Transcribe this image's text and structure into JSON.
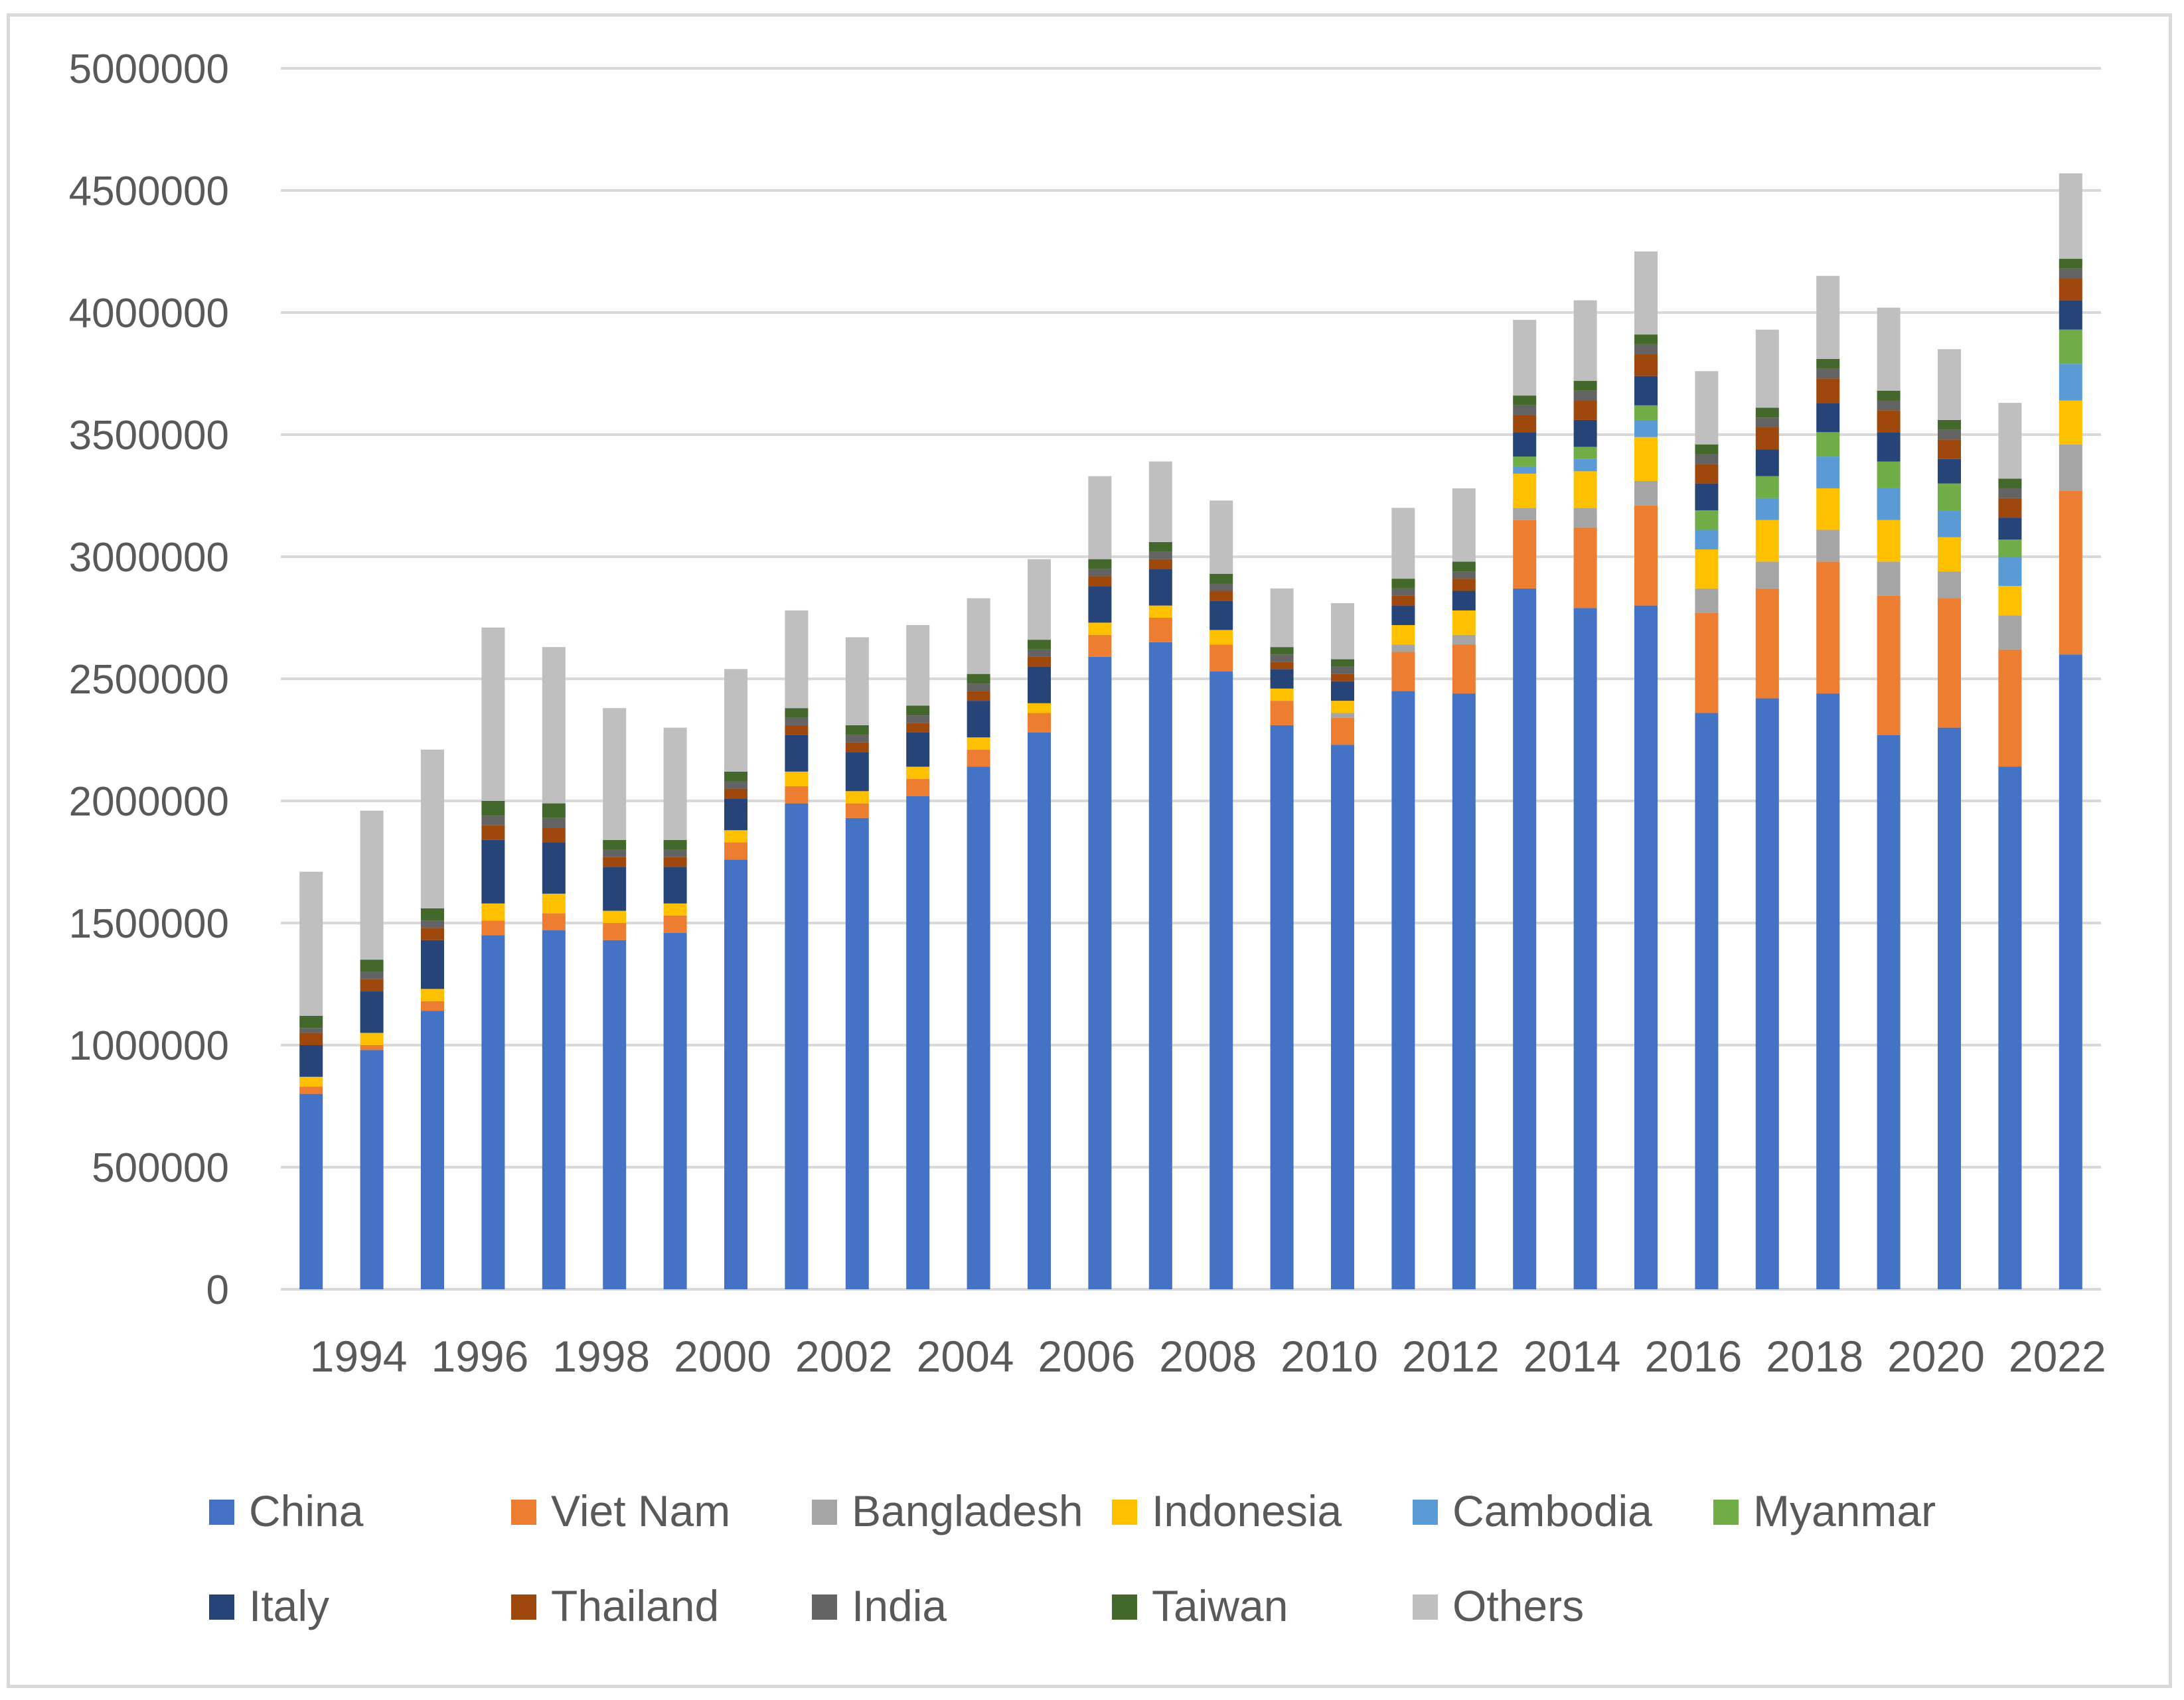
{
  "chart_data": {
    "type": "bar",
    "stacked": true,
    "title": "",
    "xlabel": "",
    "ylabel": "",
    "ylim": [
      0,
      5000000
    ],
    "yticks": [
      0,
      500000,
      1000000,
      1500000,
      2000000,
      2500000,
      3000000,
      3500000,
      4000000,
      4500000,
      5000000
    ],
    "ytick_labels": [
      "0",
      "500000",
      "1000000",
      "1500000",
      "2000000",
      "2500000",
      "3000000",
      "3500000",
      "4000000",
      "4500000",
      "5000000"
    ],
    "grid": true,
    "legend_position": "bottom",
    "categories": [
      "1993",
      "1994",
      "1995",
      "1996",
      "1997",
      "1998",
      "1999",
      "2000",
      "2001",
      "2002",
      "2003",
      "2004",
      "2005",
      "2006",
      "2007",
      "2008",
      "2009",
      "2010",
      "2011",
      "2012",
      "2013",
      "2014",
      "2015",
      "2016",
      "2017",
      "2018",
      "2019",
      "2020",
      "2021",
      "2022"
    ],
    "x_tick_labels": [
      "1994",
      "1996",
      "1998",
      "2000",
      "2002",
      "2004",
      "2006",
      "2008",
      "2010",
      "2012",
      "2014",
      "2016",
      "2018",
      "2020",
      "2022"
    ],
    "series": [
      {
        "name": "China",
        "color": "#4472C4",
        "values": [
          800000,
          980000,
          1140000,
          1450000,
          1470000,
          1430000,
          1460000,
          1760000,
          1990000,
          1930000,
          2020000,
          2140000,
          2280000,
          2590000,
          2650000,
          2530000,
          2310000,
          2230000,
          2450000,
          2440000,
          2870000,
          2790000,
          2800000,
          2360000,
          2420000,
          2440000,
          2270000,
          2300000,
          2140000,
          2600000
        ]
      },
      {
        "name": "Viet Nam",
        "color": "#ED7D31",
        "values": [
          30000,
          20000,
          40000,
          60000,
          70000,
          70000,
          70000,
          70000,
          70000,
          60000,
          70000,
          70000,
          80000,
          90000,
          100000,
          110000,
          100000,
          110000,
          160000,
          200000,
          280000,
          330000,
          410000,
          410000,
          450000,
          540000,
          570000,
          530000,
          480000,
          670000
        ]
      },
      {
        "name": "Bangladesh",
        "color": "#A5A5A5",
        "values": [
          0,
          0,
          0,
          0,
          0,
          0,
          0,
          0,
          0,
          0,
          0,
          0,
          0,
          0,
          0,
          0,
          0,
          20000,
          30000,
          40000,
          50000,
          80000,
          100000,
          100000,
          110000,
          130000,
          140000,
          110000,
          140000,
          190000
        ]
      },
      {
        "name": "Indonesia",
        "color": "#FFC000",
        "values": [
          40000,
          50000,
          50000,
          70000,
          80000,
          50000,
          50000,
          50000,
          60000,
          50000,
          50000,
          50000,
          40000,
          50000,
          50000,
          60000,
          50000,
          50000,
          80000,
          100000,
          140000,
          150000,
          180000,
          160000,
          170000,
          170000,
          170000,
          140000,
          120000,
          180000
        ]
      },
      {
        "name": "Cambodia",
        "color": "#5B9BD5",
        "values": [
          0,
          0,
          0,
          0,
          0,
          0,
          0,
          0,
          0,
          0,
          0,
          0,
          0,
          0,
          0,
          0,
          0,
          0,
          0,
          0,
          30000,
          50000,
          70000,
          80000,
          90000,
          130000,
          130000,
          110000,
          120000,
          150000
        ]
      },
      {
        "name": "Myanmar",
        "color": "#70AD47",
        "values": [
          0,
          0,
          0,
          0,
          0,
          0,
          0,
          0,
          0,
          0,
          0,
          0,
          0,
          0,
          0,
          0,
          0,
          0,
          0,
          0,
          40000,
          50000,
          60000,
          80000,
          90000,
          100000,
          110000,
          110000,
          70000,
          140000
        ]
      },
      {
        "name": "Italy",
        "color": "#264478",
        "values": [
          130000,
          170000,
          200000,
          260000,
          210000,
          180000,
          150000,
          130000,
          150000,
          160000,
          140000,
          150000,
          150000,
          150000,
          150000,
          120000,
          80000,
          80000,
          80000,
          80000,
          100000,
          110000,
          120000,
          110000,
          110000,
          120000,
          120000,
          100000,
          90000,
          120000
        ]
      },
      {
        "name": "Thailand",
        "color": "#9E480E",
        "values": [
          50000,
          50000,
          50000,
          60000,
          60000,
          40000,
          40000,
          40000,
          40000,
          40000,
          40000,
          40000,
          40000,
          40000,
          40000,
          40000,
          30000,
          30000,
          40000,
          50000,
          70000,
          80000,
          90000,
          80000,
          90000,
          100000,
          90000,
          80000,
          80000,
          90000
        ]
      },
      {
        "name": "India",
        "color": "#636363",
        "values": [
          20000,
          30000,
          30000,
          40000,
          40000,
          30000,
          30000,
          30000,
          30000,
          30000,
          30000,
          30000,
          30000,
          30000,
          30000,
          30000,
          30000,
          30000,
          30000,
          30000,
          40000,
          40000,
          40000,
          40000,
          40000,
          40000,
          40000,
          40000,
          40000,
          40000
        ]
      },
      {
        "name": "Taiwan",
        "color": "#43682B",
        "values": [
          50000,
          50000,
          50000,
          60000,
          60000,
          40000,
          40000,
          40000,
          40000,
          40000,
          40000,
          40000,
          40000,
          40000,
          40000,
          40000,
          30000,
          30000,
          40000,
          40000,
          40000,
          40000,
          40000,
          40000,
          40000,
          40000,
          40000,
          40000,
          40000,
          40000
        ]
      },
      {
        "name": "Others",
        "color": "#BFBFBF",
        "values": [
          590000,
          610000,
          650000,
          710000,
          640000,
          540000,
          460000,
          420000,
          400000,
          360000,
          330000,
          310000,
          330000,
          340000,
          330000,
          300000,
          240000,
          230000,
          290000,
          300000,
          310000,
          330000,
          340000,
          300000,
          320000,
          340000,
          340000,
          290000,
          310000,
          350000
        ]
      }
    ]
  }
}
